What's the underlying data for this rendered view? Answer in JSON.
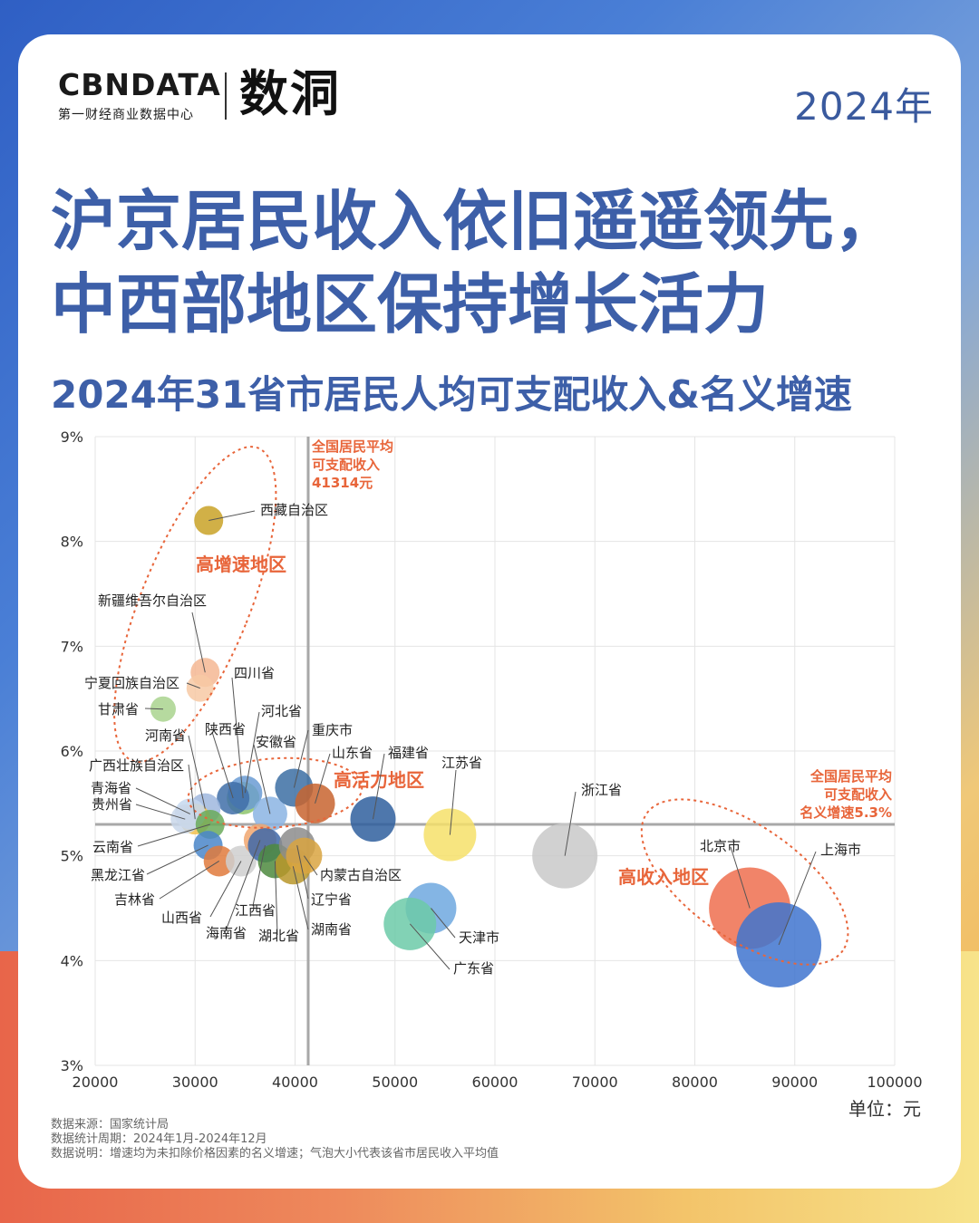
{
  "logo": {
    "brand": "CBNDATA",
    "brand_sub": "第一财经商业数据中心",
    "brand2": "数洞"
  },
  "year": "2024年",
  "headline": {
    "line1": "沪京居民收入依旧遥遥领先，",
    "line2": "中西部地区保持增长活力"
  },
  "subtitle": "2024年31省市居民人均可支配收入&名义增速",
  "unit": "单位：元",
  "footnotes": [
    "数据来源：国家统计局",
    "数据统计周期：2024年1月-2024年12月",
    "数据说明：增速均为未扣除价格因素的名义增速；气泡大小代表该省市居民收入平均值"
  ],
  "chart_data": {
    "type": "scatter",
    "xlim": [
      20000,
      100000
    ],
    "ylim": [
      3,
      9
    ],
    "x_ticks": [
      "20000",
      "30000",
      "40000",
      "50000",
      "60000",
      "70000",
      "80000",
      "90000",
      "100000"
    ],
    "y_ticks": [
      "3%",
      "4%",
      "5%",
      "6%",
      "7%",
      "8%",
      "9%"
    ],
    "avg_income": {
      "value": 41314,
      "label": [
        "全国居民平均",
        "可支配收入",
        "41314元"
      ]
    },
    "avg_growth": {
      "value": 5.3,
      "label": [
        "全国居民平均",
        "可支配收入",
        "名义增速5.3%"
      ]
    },
    "regions": [
      {
        "label": "高增速地区",
        "cx": 30000,
        "cy": 7.4,
        "rx": 60,
        "ry": 186,
        "rot": 22
      },
      {
        "label": "高活力地区",
        "cx": 38000,
        "cy": 5.6,
        "rx": 96,
        "ry": 38,
        "rot": -4
      },
      {
        "label": "高收入地区",
        "cx": 85000,
        "cy": 4.75,
        "rx": 132,
        "ry": 62,
        "rot": 35
      }
    ],
    "points": [
      {
        "name": "西藏自治区",
        "x": 31358,
        "y": 8.2,
        "r": 16,
        "color": "#c9a227"
      },
      {
        "name": "新疆维吾尔自治区",
        "x": 31000,
        "y": 6.75,
        "r": 16,
        "color": "#f4b793"
      },
      {
        "name": "宁夏回族自治区",
        "x": 30500,
        "y": 6.6,
        "r": 15,
        "color": "#f7c9a4"
      },
      {
        "name": "甘肃省",
        "x": 26800,
        "y": 6.4,
        "r": 14,
        "color": "#a9d38e"
      },
      {
        "name": "四川省",
        "x": 34800,
        "y": 5.55,
        "r": 18,
        "color": "#8dc46b"
      },
      {
        "name": "河北省",
        "x": 35000,
        "y": 5.6,
        "r": 19,
        "color": "#6a9bd4"
      },
      {
        "name": "陕西省",
        "x": 33800,
        "y": 5.55,
        "r": 18,
        "color": "#3f6fa8"
      },
      {
        "name": "河南省",
        "x": 31000,
        "y": 5.45,
        "r": 17,
        "color": "#9fb7de"
      },
      {
        "name": "广西壮族自治区",
        "x": 30000,
        "y": 5.35,
        "r": 17,
        "color": "#f2c14e"
      },
      {
        "name": "青海省",
        "x": 29500,
        "y": 5.4,
        "r": 17,
        "color": "#c6d8ef"
      },
      {
        "name": "贵州省",
        "x": 29000,
        "y": 5.35,
        "r": 16,
        "color": "#c9d7ea"
      },
      {
        "name": "云南省",
        "x": 31500,
        "y": 5.3,
        "r": 16,
        "color": "#6aaa5b"
      },
      {
        "name": "安徽省",
        "x": 37500,
        "y": 5.4,
        "r": 19,
        "color": "#8bb4e3"
      },
      {
        "name": "重庆市",
        "x": 39900,
        "y": 5.65,
        "r": 21,
        "color": "#3c6ea3"
      },
      {
        "name": "山东省",
        "x": 42000,
        "y": 5.5,
        "r": 22,
        "color": "#c8642f"
      },
      {
        "name": "福建省",
        "x": 47800,
        "y": 5.35,
        "r": 25,
        "color": "#2f5f9e"
      },
      {
        "name": "江苏省",
        "x": 55500,
        "y": 5.2,
        "r": 29,
        "color": "#f6e06a"
      },
      {
        "name": "浙江省",
        "x": 67000,
        "y": 5.0,
        "r": 36,
        "color": "#c9c9c9"
      },
      {
        "name": "黑龙江省",
        "x": 31300,
        "y": 5.1,
        "r": 16,
        "color": "#4a86c9"
      },
      {
        "name": "吉林省",
        "x": 32400,
        "y": 4.95,
        "r": 17,
        "color": "#e07a3c"
      },
      {
        "name": "山西省",
        "x": 34600,
        "y": 4.95,
        "r": 17,
        "color": "#cfcfcf"
      },
      {
        "name": "海南省",
        "x": 36500,
        "y": 5.15,
        "r": 18,
        "color": "#f0a66e"
      },
      {
        "name": "江西省",
        "x": 37000,
        "y": 5.1,
        "r": 19,
        "color": "#3e67a8"
      },
      {
        "name": "湖北省",
        "x": 38000,
        "y": 4.95,
        "r": 19,
        "color": "#4e8a3e"
      },
      {
        "name": "湖南省",
        "x": 39800,
        "y": 4.9,
        "r": 20,
        "color": "#b8962a"
      },
      {
        "name": "辽宁省",
        "x": 40200,
        "y": 5.1,
        "r": 20,
        "color": "#8c8c8c"
      },
      {
        "name": "内蒙古自治区",
        "x": 40900,
        "y": 5.0,
        "r": 20,
        "color": "#d9a441"
      },
      {
        "name": "天津市",
        "x": 53600,
        "y": 4.5,
        "r": 28,
        "color": "#6ea8df"
      },
      {
        "name": "广东省",
        "x": 51500,
        "y": 4.35,
        "r": 29,
        "color": "#6ccaa8"
      },
      {
        "name": "北京市",
        "x": 85500,
        "y": 4.5,
        "r": 45,
        "color": "#ee6e4f"
      },
      {
        "name": "上海市",
        "x": 88400,
        "y": 4.15,
        "r": 47,
        "color": "#3f74cf"
      }
    ]
  }
}
